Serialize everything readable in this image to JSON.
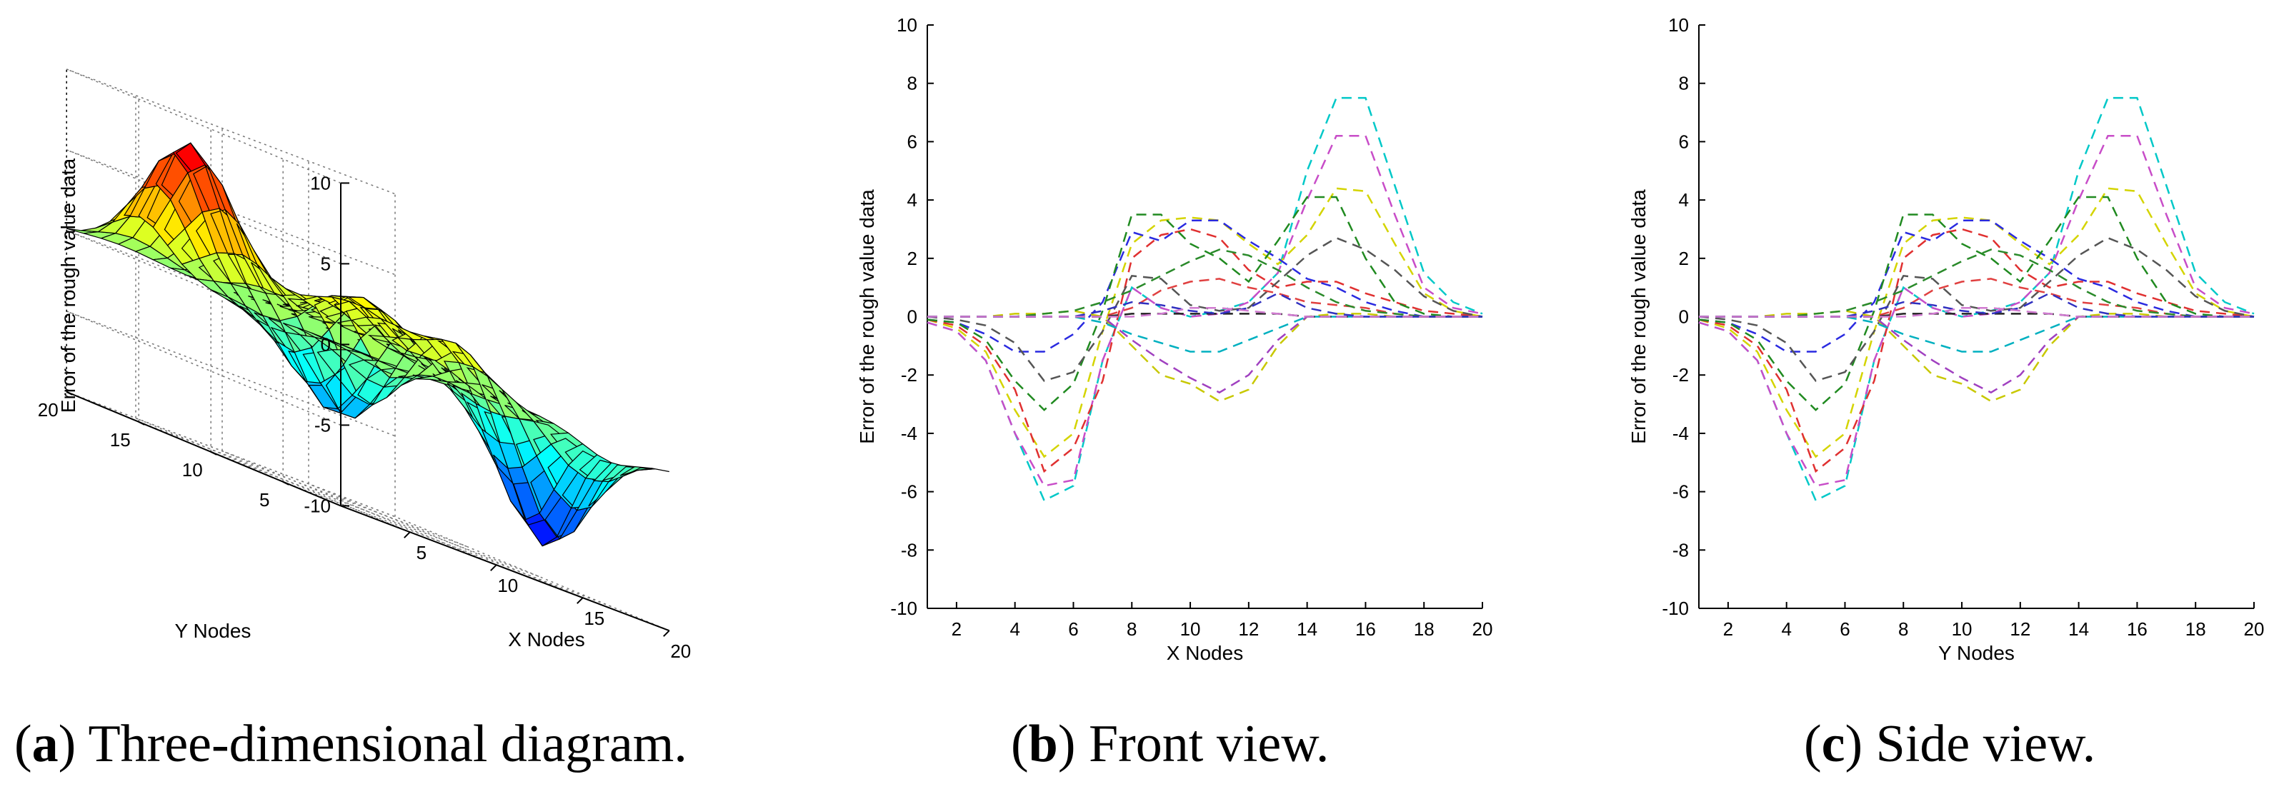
{
  "chart_data": [
    {
      "id": "a",
      "type": "surface3d",
      "zlabel": "Error of the rough value data",
      "xlabel": "X Nodes",
      "ylabel": "Y Nodes",
      "xticks": [
        5,
        10,
        15,
        20
      ],
      "yticks": [
        5,
        10,
        15,
        20
      ],
      "zticks": [
        10,
        5,
        0,
        -5,
        -10
      ],
      "xlim": [
        1,
        20
      ],
      "ylim": [
        1,
        20
      ],
      "zlim": [
        -10,
        10
      ],
      "grid": true,
      "colormap": "jet",
      "surface_peaks": [
        {
          "x": 4,
          "y": 15,
          "z": 8.5
        },
        {
          "x": 8,
          "y": 9,
          "z": 4.0
        },
        {
          "x": 14,
          "y": 15,
          "z": 3.0
        },
        {
          "x": 11,
          "y": 5,
          "z": 3.0
        },
        {
          "x": 6,
          "y": 7,
          "z": -6.0
        },
        {
          "x": 16,
          "y": 5,
          "z": -8.0
        }
      ],
      "caption_letter": "a",
      "caption_text": " Three-dimensional diagram."
    },
    {
      "id": "b",
      "type": "line",
      "xlabel": "X Nodes",
      "ylabel": "Error of the rough value data",
      "xticks": [
        2,
        4,
        6,
        8,
        10,
        12,
        14,
        16,
        18,
        20
      ],
      "yticks": [
        10,
        8,
        6,
        4,
        2,
        0,
        -2,
        -4,
        -6,
        -8,
        -10
      ],
      "xlim": [
        1,
        20
      ],
      "ylim": [
        -10,
        10
      ],
      "line_style": "dashed",
      "x": [
        1,
        2,
        3,
        4,
        5,
        6,
        7,
        8,
        9,
        10,
        11,
        12,
        13,
        14,
        15,
        16,
        17,
        18,
        19,
        20
      ],
      "series": [
        {
          "color": "#00c8c8",
          "values": [
            -0.2,
            -0.5,
            -1.5,
            -4.0,
            -6.3,
            -5.8,
            -1.5,
            1.0,
            0.3,
            0.0,
            0.2,
            0.5,
            1.5,
            5.0,
            7.5,
            7.5,
            4.5,
            1.5,
            0.5,
            0.1
          ]
        },
        {
          "color": "#c84dc8",
          "values": [
            -0.2,
            -0.5,
            -1.5,
            -4.0,
            -5.8,
            -5.6,
            -1.5,
            1.0,
            0.3,
            0.0,
            0.1,
            0.5,
            1.5,
            4.0,
            6.2,
            6.2,
            3.5,
            1.0,
            0.3,
            0.1
          ]
        },
        {
          "color": "#d4d400",
          "values": [
            -0.1,
            -0.4,
            -1.2,
            -3.2,
            -4.8,
            -4.0,
            -0.5,
            2.5,
            3.3,
            3.4,
            3.3,
            2.5,
            1.8,
            2.8,
            4.4,
            4.3,
            2.5,
            0.8,
            0.2,
            0.0
          ]
        },
        {
          "color": "#e03030",
          "values": [
            -0.1,
            -0.3,
            -1.0,
            -2.5,
            -5.3,
            -4.5,
            -2.2,
            2.0,
            2.8,
            3.0,
            2.7,
            1.6,
            1.0,
            1.2,
            1.2,
            0.8,
            0.5,
            0.2,
            0.1,
            0.0
          ]
        },
        {
          "color": "#2a2ae0",
          "values": [
            -0.1,
            -0.2,
            -0.6,
            -1.2,
            -1.2,
            -0.6,
            0.5,
            2.9,
            2.6,
            3.3,
            3.3,
            2.6,
            2.0,
            1.3,
            1.0,
            0.5,
            0.2,
            0.0,
            0.0,
            0.0
          ]
        },
        {
          "color": "#208a20",
          "values": [
            -0.1,
            -0.2,
            -0.8,
            -2.2,
            -3.2,
            -2.3,
            0.2,
            3.5,
            3.5,
            2.5,
            2.0,
            1.2,
            2.6,
            4.1,
            4.1,
            2.0,
            0.5,
            0.1,
            0.0,
            0.0
          ]
        },
        {
          "color": "#555555",
          "values": [
            0.0,
            -0.1,
            -0.3,
            -0.9,
            -2.2,
            -1.9,
            -0.5,
            1.4,
            1.3,
            0.4,
            0.2,
            0.3,
            1.2,
            2.1,
            2.7,
            2.3,
            1.6,
            0.7,
            0.2,
            0.0
          ]
        },
        {
          "color": "#c8c800",
          "values": [
            0.0,
            0.0,
            0.0,
            0.1,
            0.1,
            0.2,
            0.0,
            -1.0,
            -2.0,
            -2.3,
            -2.9,
            -2.5,
            -1.0,
            0.0,
            0.1,
            0.1,
            0.0,
            0.0,
            0.0,
            0.0
          ]
        },
        {
          "color": "#a040c0",
          "values": [
            0.0,
            0.0,
            0.0,
            0.0,
            0.0,
            0.0,
            0.0,
            -0.8,
            -1.5,
            -2.1,
            -2.6,
            -2.0,
            -0.8,
            0.0,
            0.0,
            0.0,
            0.0,
            0.0,
            0.0,
            0.0
          ]
        },
        {
          "color": "#00b0c0",
          "values": [
            0.0,
            0.0,
            0.0,
            0.0,
            0.0,
            0.0,
            -0.2,
            -0.6,
            -0.9,
            -1.2,
            -1.2,
            -0.8,
            -0.4,
            0.0,
            0.0,
            0.0,
            0.0,
            0.0,
            0.0,
            0.0
          ]
        },
        {
          "color": "#e04040",
          "values": [
            0.0,
            0.0,
            0.0,
            0.0,
            0.0,
            0.0,
            0.0,
            0.3,
            0.9,
            1.2,
            1.3,
            1.0,
            0.8,
            0.5,
            0.4,
            0.3,
            0.1,
            0.0,
            0.0,
            0.0
          ]
        },
        {
          "color": "#2a8a2a",
          "values": [
            0.0,
            0.0,
            0.0,
            0.0,
            0.1,
            0.2,
            0.5,
            0.9,
            1.4,
            1.9,
            2.3,
            2.1,
            1.6,
            1.0,
            0.5,
            0.2,
            0.1,
            0.0,
            0.0,
            0.0
          ]
        },
        {
          "color": "#222222",
          "values": [
            0.0,
            0.0,
            0.0,
            0.0,
            0.0,
            0.0,
            0.0,
            0.1,
            0.1,
            0.1,
            0.1,
            0.1,
            0.1,
            0.0,
            0.0,
            0.0,
            0.0,
            0.0,
            0.0,
            0.0
          ]
        },
        {
          "color": "#3030c0",
          "values": [
            0.0,
            0.0,
            0.0,
            0.0,
            0.0,
            0.0,
            0.2,
            0.5,
            0.4,
            0.2,
            0.1,
            0.3,
            0.8,
            0.3,
            0.1,
            0.0,
            0.0,
            0.0,
            0.0,
            0.0
          ]
        },
        {
          "color": "#d07ad0",
          "values": [
            0.0,
            0.0,
            0.0,
            0.0,
            0.0,
            0.0,
            0.0,
            0.0,
            0.1,
            0.3,
            0.3,
            0.2,
            0.1,
            0.0,
            0.0,
            0.0,
            0.0,
            0.0,
            0.0,
            0.0
          ]
        }
      ],
      "caption_letter": "b",
      "caption_text": " Front view."
    },
    {
      "id": "c",
      "type": "line",
      "xlabel": "Y Nodes",
      "ylabel": "Error of the rough value data",
      "xticks": [
        2,
        4,
        6,
        8,
        10,
        12,
        14,
        16,
        18,
        20
      ],
      "yticks": [
        10,
        8,
        6,
        4,
        2,
        0,
        -2,
        -4,
        -6,
        -8,
        -10
      ],
      "xlim": [
        1,
        20
      ],
      "ylim": [
        -10,
        10
      ],
      "line_style": "dashed",
      "x": [
        1,
        2,
        3,
        4,
        5,
        6,
        7,
        8,
        9,
        10,
        11,
        12,
        13,
        14,
        15,
        16,
        17,
        18,
        19,
        20
      ],
      "series": [
        {
          "color": "#00c8c8",
          "values": [
            -0.2,
            -0.5,
            -1.5,
            -4.0,
            -6.3,
            -5.8,
            -1.5,
            1.0,
            0.3,
            0.0,
            0.2,
            0.5,
            1.5,
            5.0,
            7.5,
            7.5,
            4.5,
            1.5,
            0.5,
            0.1
          ]
        },
        {
          "color": "#c84dc8",
          "values": [
            -0.2,
            -0.5,
            -1.5,
            -4.0,
            -5.8,
            -5.6,
            -1.5,
            1.0,
            0.3,
            0.0,
            0.1,
            0.5,
            1.5,
            4.0,
            6.2,
            6.2,
            3.5,
            1.0,
            0.3,
            0.1
          ]
        },
        {
          "color": "#d4d400",
          "values": [
            -0.1,
            -0.4,
            -1.2,
            -3.2,
            -4.8,
            -4.0,
            -0.5,
            2.5,
            3.3,
            3.4,
            3.3,
            2.5,
            1.8,
            2.8,
            4.4,
            4.3,
            2.5,
            0.8,
            0.2,
            0.0
          ]
        },
        {
          "color": "#e03030",
          "values": [
            -0.1,
            -0.3,
            -1.0,
            -2.5,
            -5.3,
            -4.5,
            -2.2,
            2.0,
            2.8,
            3.0,
            2.7,
            1.6,
            1.0,
            1.2,
            1.2,
            0.8,
            0.5,
            0.2,
            0.1,
            0.0
          ]
        },
        {
          "color": "#2a2ae0",
          "values": [
            -0.1,
            -0.2,
            -0.6,
            -1.2,
            -1.2,
            -0.6,
            0.5,
            2.9,
            2.6,
            3.3,
            3.3,
            2.6,
            2.0,
            1.3,
            1.0,
            0.5,
            0.2,
            0.0,
            0.0,
            0.0
          ]
        },
        {
          "color": "#208a20",
          "values": [
            -0.1,
            -0.2,
            -0.8,
            -2.2,
            -3.2,
            -2.3,
            0.2,
            3.5,
            3.5,
            2.5,
            2.0,
            1.2,
            2.6,
            4.1,
            4.1,
            2.0,
            0.5,
            0.1,
            0.0,
            0.0
          ]
        },
        {
          "color": "#555555",
          "values": [
            0.0,
            -0.1,
            -0.3,
            -0.9,
            -2.2,
            -1.9,
            -0.5,
            1.4,
            1.3,
            0.4,
            0.2,
            0.3,
            1.2,
            2.1,
            2.7,
            2.3,
            1.6,
            0.7,
            0.2,
            0.0
          ]
        },
        {
          "color": "#c8c800",
          "values": [
            0.0,
            0.0,
            0.0,
            0.1,
            0.1,
            0.2,
            0.0,
            -1.0,
            -2.0,
            -2.3,
            -2.9,
            -2.5,
            -1.0,
            0.0,
            0.1,
            0.1,
            0.0,
            0.0,
            0.0,
            0.0
          ]
        },
        {
          "color": "#a040c0",
          "values": [
            0.0,
            0.0,
            0.0,
            0.0,
            0.0,
            0.0,
            0.0,
            -0.8,
            -1.5,
            -2.1,
            -2.6,
            -2.0,
            -0.8,
            0.0,
            0.0,
            0.0,
            0.0,
            0.0,
            0.0,
            0.0
          ]
        },
        {
          "color": "#00b0c0",
          "values": [
            0.0,
            0.0,
            0.0,
            0.0,
            0.0,
            0.0,
            -0.2,
            -0.6,
            -0.9,
            -1.2,
            -1.2,
            -0.8,
            -0.4,
            0.0,
            0.0,
            0.0,
            0.0,
            0.0,
            0.0,
            0.0
          ]
        },
        {
          "color": "#e04040",
          "values": [
            0.0,
            0.0,
            0.0,
            0.0,
            0.0,
            0.0,
            0.0,
            0.3,
            0.9,
            1.2,
            1.3,
            1.0,
            0.8,
            0.5,
            0.4,
            0.3,
            0.1,
            0.0,
            0.0,
            0.0
          ]
        },
        {
          "color": "#2a8a2a",
          "values": [
            0.0,
            0.0,
            0.0,
            0.0,
            0.1,
            0.2,
            0.5,
            0.9,
            1.4,
            1.9,
            2.3,
            2.1,
            1.6,
            1.0,
            0.5,
            0.2,
            0.1,
            0.0,
            0.0,
            0.0
          ]
        },
        {
          "color": "#222222",
          "values": [
            0.0,
            0.0,
            0.0,
            0.0,
            0.0,
            0.0,
            0.0,
            0.1,
            0.1,
            0.1,
            0.1,
            0.1,
            0.1,
            0.0,
            0.0,
            0.0,
            0.0,
            0.0,
            0.0,
            0.0
          ]
        },
        {
          "color": "#3030c0",
          "values": [
            0.0,
            0.0,
            0.0,
            0.0,
            0.0,
            0.0,
            0.2,
            0.5,
            0.4,
            0.2,
            0.1,
            0.3,
            0.8,
            0.3,
            0.1,
            0.0,
            0.0,
            0.0,
            0.0,
            0.0
          ]
        },
        {
          "color": "#d07ad0",
          "values": [
            0.0,
            0.0,
            0.0,
            0.0,
            0.0,
            0.0,
            0.0,
            0.0,
            0.1,
            0.3,
            0.3,
            0.2,
            0.1,
            0.0,
            0.0,
            0.0,
            0.0,
            0.0,
            0.0,
            0.0
          ]
        }
      ],
      "caption_letter": "c",
      "caption_text": " Side view."
    }
  ]
}
